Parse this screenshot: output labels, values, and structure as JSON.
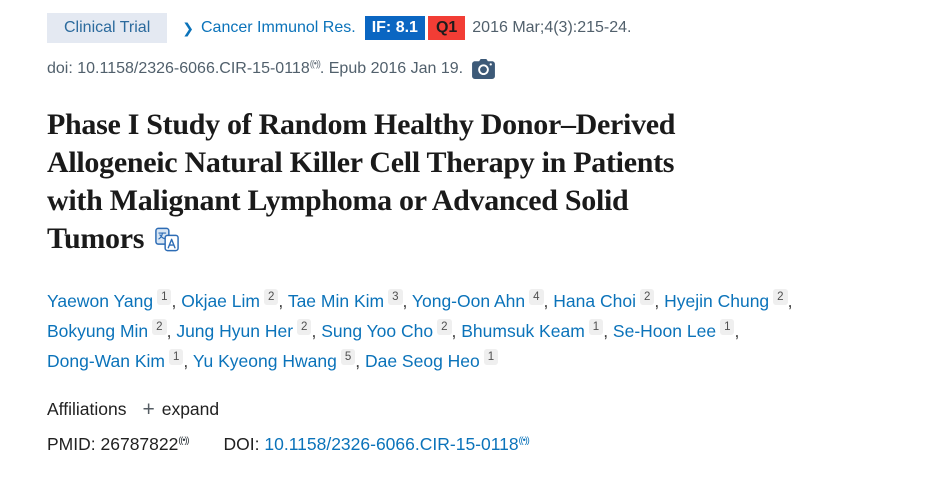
{
  "header": {
    "publication_type": "Clinical Trial",
    "journal": "Cancer Immunol Res.",
    "impact_factor": "IF: 8.1",
    "quartile": "Q1",
    "citation": "2016 Mar;4(3):215-24.",
    "doi_text": "doi: 10.1158/2326-6066.CIR-15-0118",
    "epub_text": ". Epub 2016 Jan 19."
  },
  "title": {
    "lines": [
      "Phase I Study of Random Healthy Donor–Derived",
      "Allogeneic Natural Killer Cell Therapy in Patients",
      "with Malignant Lymphoma or Advanced Solid",
      "Tumors"
    ]
  },
  "authors": {
    "lines": [
      [
        {
          "name": "Yaewon Yang",
          "sup": "1"
        },
        {
          "name": "Okjae Lim",
          "sup": "2"
        },
        {
          "name": "Tae Min Kim",
          "sup": "3"
        },
        {
          "name": "Yong-Oon Ahn",
          "sup": "4"
        },
        {
          "name": "Hana Choi",
          "sup": "2"
        },
        {
          "name": "Hyejin Chung",
          "sup": "2"
        }
      ],
      [
        {
          "name": "Bokyung Min",
          "sup": "2"
        },
        {
          "name": "Jung Hyun Her",
          "sup": "2"
        },
        {
          "name": "Sung Yoo Cho",
          "sup": "2"
        },
        {
          "name": "Bhumsuk Keam",
          "sup": "1"
        },
        {
          "name": "Se-Hoon Lee",
          "sup": "1"
        }
      ],
      [
        {
          "name": "Dong-Wan Kim",
          "sup": "1"
        },
        {
          "name": "Yu Kyeong Hwang",
          "sup": "5"
        },
        {
          "name": "Dae Seog Heo",
          "sup": "1"
        }
      ]
    ]
  },
  "affiliations": {
    "label": "Affiliations",
    "expand_label": "expand"
  },
  "ids": {
    "pmid_label": "PMID:",
    "pmid_value": "26787822",
    "doi_label": "DOI:",
    "doi_value": "10.1158/2326-6066.CIR-15-0118"
  },
  "icons": {
    "chevron": "❯",
    "plus": "+",
    "marker": "((•))",
    "camera": "camera-icon",
    "translate": "translate-icon"
  },
  "colors": {
    "link_blue": "#0b73ba",
    "if_badge_bg": "#0a66c2",
    "quartile_bg": "#f23d35",
    "type_badge_bg": "#e4e9f2",
    "type_badge_text": "#2b6a9d",
    "muted_text": "#51606c",
    "title_text": "#1a1a1a",
    "camera_icon": "#3d5a78"
  }
}
